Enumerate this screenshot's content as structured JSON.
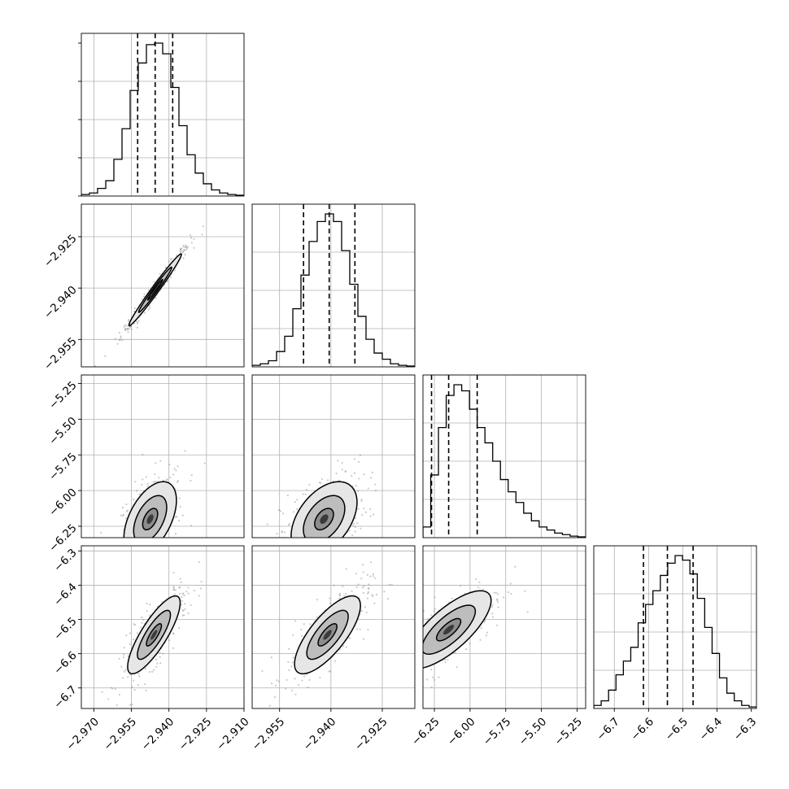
{
  "chart_data": {
    "type": "corner",
    "grid": true,
    "parameters": [
      {
        "range": [
          -2.975,
          -2.91
        ],
        "ticks": [
          -2.97,
          -2.955,
          -2.94,
          -2.925,
          -2.91
        ],
        "tick_labels": [
          "−2.970",
          "−2.955",
          "−2.940",
          "−2.925",
          "−2.910"
        ],
        "quantiles": [
          -2.9525,
          -2.9455,
          -2.9385
        ]
      },
      {
        "range": [
          -2.963,
          -2.9155
        ],
        "ticks": [
          -2.955,
          -2.94,
          -2.925
        ],
        "tick_labels": [
          "−2.955",
          "−2.940",
          "−2.925"
        ],
        "quantiles": [
          -2.948,
          -2.9405,
          -2.933
        ]
      },
      {
        "range": [
          -6.33,
          -5.19
        ],
        "ticks": [
          -6.25,
          -6.0,
          -5.75,
          -5.5,
          -5.25
        ],
        "tick_labels": [
          "−6.25",
          "−6.00",
          "−5.75",
          "−5.50",
          "−5.25"
        ],
        "quantiles": [
          -6.27,
          -6.15,
          -5.95
        ]
      },
      {
        "range": [
          -6.76,
          -6.285
        ],
        "ticks": [
          -6.7,
          -6.6,
          -6.5,
          -6.4,
          -6.3
        ],
        "tick_labels": [
          "−6.7",
          "−6.6",
          "−6.5",
          "−6.4",
          "−6.3"
        ],
        "quantiles": [
          -6.615,
          -6.545,
          -6.47
        ]
      }
    ],
    "histograms": [
      [
        0.01,
        0.02,
        0.05,
        0.1,
        0.24,
        0.44,
        0.69,
        0.87,
        0.99,
        1.0,
        0.93,
        0.71,
        0.46,
        0.27,
        0.15,
        0.08,
        0.04,
        0.02,
        0.01,
        0.005
      ],
      [
        0.01,
        0.02,
        0.04,
        0.1,
        0.2,
        0.38,
        0.6,
        0.82,
        0.95,
        1.0,
        0.95,
        0.76,
        0.54,
        0.33,
        0.18,
        0.09,
        0.05,
        0.02,
        0.01,
        0.005
      ],
      [
        0.07,
        0.41,
        0.72,
        0.93,
        1.0,
        0.96,
        0.84,
        0.72,
        0.62,
        0.5,
        0.38,
        0.3,
        0.23,
        0.16,
        0.11,
        0.07,
        0.05,
        0.03,
        0.02,
        0.01,
        0.005
      ],
      [
        0.02,
        0.05,
        0.12,
        0.22,
        0.31,
        0.4,
        0.56,
        0.68,
        0.77,
        0.87,
        0.95,
        1.0,
        0.97,
        0.88,
        0.72,
        0.53,
        0.36,
        0.2,
        0.1,
        0.05,
        0.02,
        0.01
      ]
    ],
    "pairs": [
      {
        "x": 0,
        "y": 1,
        "center": [
          -2.9455,
          -2.9405
        ],
        "sd": [
          0.006,
          0.006
        ],
        "rho": 0.985,
        "count": 320
      },
      {
        "x": 0,
        "y": 2,
        "center": [
          -2.9475,
          -6.2
        ],
        "sd": [
          0.006,
          0.15
        ],
        "rho": 0.5,
        "count": 320
      },
      {
        "x": 1,
        "y": 2,
        "center": [
          -2.942,
          -6.2
        ],
        "sd": [
          0.0055,
          0.15
        ],
        "rho": 0.45,
        "count": 320
      },
      {
        "x": 0,
        "y": 3,
        "center": [
          -2.946,
          -6.545
        ],
        "sd": [
          0.006,
          0.065
        ],
        "rho": 0.82,
        "count": 320
      },
      {
        "x": 1,
        "y": 3,
        "center": [
          -2.941,
          -6.545
        ],
        "sd": [
          0.0055,
          0.065
        ],
        "rho": 0.75,
        "count": 320
      },
      {
        "x": 2,
        "y": 3,
        "center": [
          -6.15,
          -6.53
        ],
        "sd": [
          0.17,
          0.065
        ],
        "rho": 0.75,
        "count": 320
      }
    ],
    "contour_levels": [
      0.5,
      1.1,
      1.75
    ],
    "colors": {
      "line": "#000000",
      "points": "#8a8a8a",
      "grid": "#b0b0b0"
    }
  }
}
